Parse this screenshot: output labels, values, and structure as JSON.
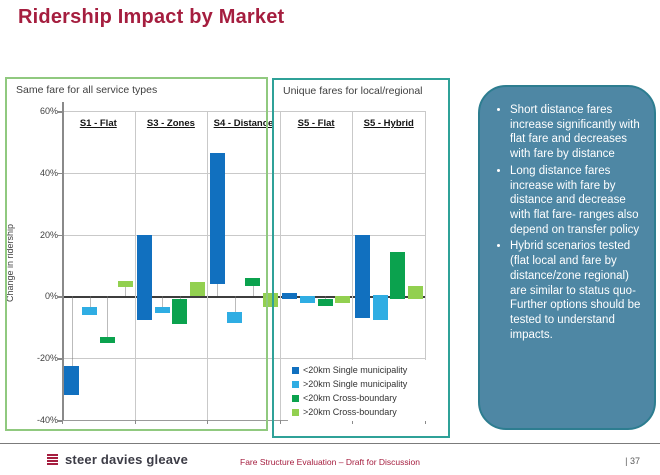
{
  "slide": {
    "title": "Ridership Impact by Market",
    "footer": {
      "logo_text": "steer davies gleave",
      "center_text": "Fare Structure Evaluation – Draft for Discussion",
      "page_number": "| 37"
    }
  },
  "groups": {
    "left_label": "Same fare for all service types",
    "right_label": "Unique fares for local/regional"
  },
  "notes_panel": {
    "bullets": [
      "Short distance fares increase significantly with flat fare and decreases with fare by distance",
      "Long distance fares increase with fare by distance and decrease with flat fare- ranges also depend on transfer policy",
      "Hybrid scenarios tested (flat local and fare by distance/zone regional) are similar to status quo- Further options should be tested to understand impacts."
    ]
  },
  "colors": {
    "title_red": "#A51E3F",
    "box_green": "#90C97F",
    "box_teal": "#2FA198",
    "panel_fill": "#4E87A4",
    "panel_border": "#2D7D90"
  },
  "chart_data": {
    "type": "bar",
    "variant": "floating-range-columns",
    "title": "",
    "xlabel": "",
    "ylabel": "Change in ridership",
    "ylim": [
      -40,
      60
    ],
    "grid": true,
    "legend_position": "inside-bottom-right",
    "yticks": [
      {
        "label": "60%",
        "value": 60
      },
      {
        "label": "40%",
        "value": 40
      },
      {
        "label": "20%",
        "value": 20
      },
      {
        "label": "0%",
        "value": 0
      },
      {
        "label": "-20%",
        "value": -20
      },
      {
        "label": "-40%",
        "value": -40
      }
    ],
    "categories": [
      "S1 - Flat",
      "S3 - Zones",
      "S4 - Distance",
      "S5 - Flat",
      "S5 - Hybrid"
    ],
    "series": [
      {
        "name": "<20km Single municipality",
        "color": "#1170BF",
        "ranges": [
          [
            -32,
            -22.5
          ],
          [
            -7.5,
            20
          ],
          [
            4,
            46.5
          ],
          [
            -1,
            1
          ],
          [
            -7,
            20
          ]
        ]
      },
      {
        "name": ">20km Single municipality",
        "color": "#2FADE3",
        "ranges": [
          [
            -6,
            -3.5
          ],
          [
            -5.5,
            -3.5
          ],
          [
            -8.5,
            -5
          ],
          [
            -2,
            0
          ],
          [
            -7.5,
            0.5
          ]
        ]
      },
      {
        "name": "<20km Cross-boundary",
        "color": "#0BA24E",
        "ranges": [
          [
            -15,
            -13
          ],
          [
            -9,
            -1
          ],
          [
            3.5,
            6
          ],
          [
            -3,
            -1
          ],
          [
            -1,
            14.5
          ]
        ]
      },
      {
        "name": ">20km Cross-boundary",
        "color": "#92D050",
        "ranges": [
          [
            3,
            5
          ],
          [
            0,
            4.5
          ],
          [
            -3.5,
            1
          ],
          [
            -2,
            0
          ],
          [
            -1,
            3.5
          ]
        ]
      }
    ]
  }
}
